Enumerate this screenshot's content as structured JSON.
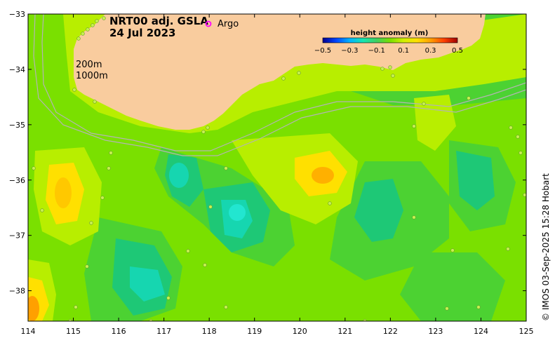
{
  "map": {
    "title_line1": "NRT00 adj. GSLA",
    "title_line2": "24 Jul 2023",
    "argo_label": "Argo",
    "argo_marker_color": "#ff00ff",
    "isobath_labels": [
      "200m",
      "1000m"
    ],
    "credit": "© IMOS 03-Sep-2025 15:28 Hobart",
    "land_color": "#f9cc9e",
    "isobath_color": "#b4b4b4"
  },
  "colorbar": {
    "title": "height anomaly (m)",
    "tick_labels": [
      "−0.5",
      "−0.3",
      "−0.1",
      "0.1",
      "0.3",
      "0.5"
    ],
    "range": [
      -0.5,
      0.5
    ],
    "colors": [
      "#00008f",
      "#0044ff",
      "#00b4ff",
      "#16e6b0",
      "#40d060",
      "#7ae000",
      "#d2f000",
      "#ffe000",
      "#ffa000",
      "#ff4000",
      "#9e0000"
    ]
  },
  "chart_data": {
    "type": "heatmap",
    "x_tick_labels": [
      "114",
      "115",
      "116",
      "117",
      "118",
      "119",
      "120",
      "121",
      "122",
      "123",
      "124",
      "125"
    ],
    "y_tick_labels": [
      "−33",
      "−34",
      "−35",
      "−36",
      "−37",
      "−38"
    ],
    "x_ticks": [
      114,
      115,
      116,
      117,
      118,
      119,
      120,
      121,
      122,
      123,
      124,
      125
    ],
    "y_ticks": [
      -33,
      -34,
      -35,
      -36,
      -37,
      -38
    ],
    "xlim": [
      114,
      125
    ],
    "ylim": [
      -38.55,
      -33
    ],
    "xlabel": "",
    "ylabel": "",
    "grid": false,
    "features": [
      {
        "lon": 114.8,
        "lat": -36.2,
        "value": 0.2
      },
      {
        "lon": 114.1,
        "lat": -38.2,
        "value": 0.35
      },
      {
        "lon": 120.6,
        "lat": -35.9,
        "value": 0.25
      },
      {
        "lon": 118.6,
        "lat": -36.6,
        "value": -0.2
      },
      {
        "lon": 117.4,
        "lat": -35.9,
        "value": -0.1
      },
      {
        "lon": 116.6,
        "lat": -37.8,
        "value": -0.12
      },
      {
        "lon": 123.5,
        "lat": -34.8,
        "value": 0.12
      },
      {
        "lon": 124.3,
        "lat": -35.9,
        "value": -0.07
      },
      {
        "lon": 121.8,
        "lat": -36.5,
        "value": -0.06
      }
    ]
  }
}
